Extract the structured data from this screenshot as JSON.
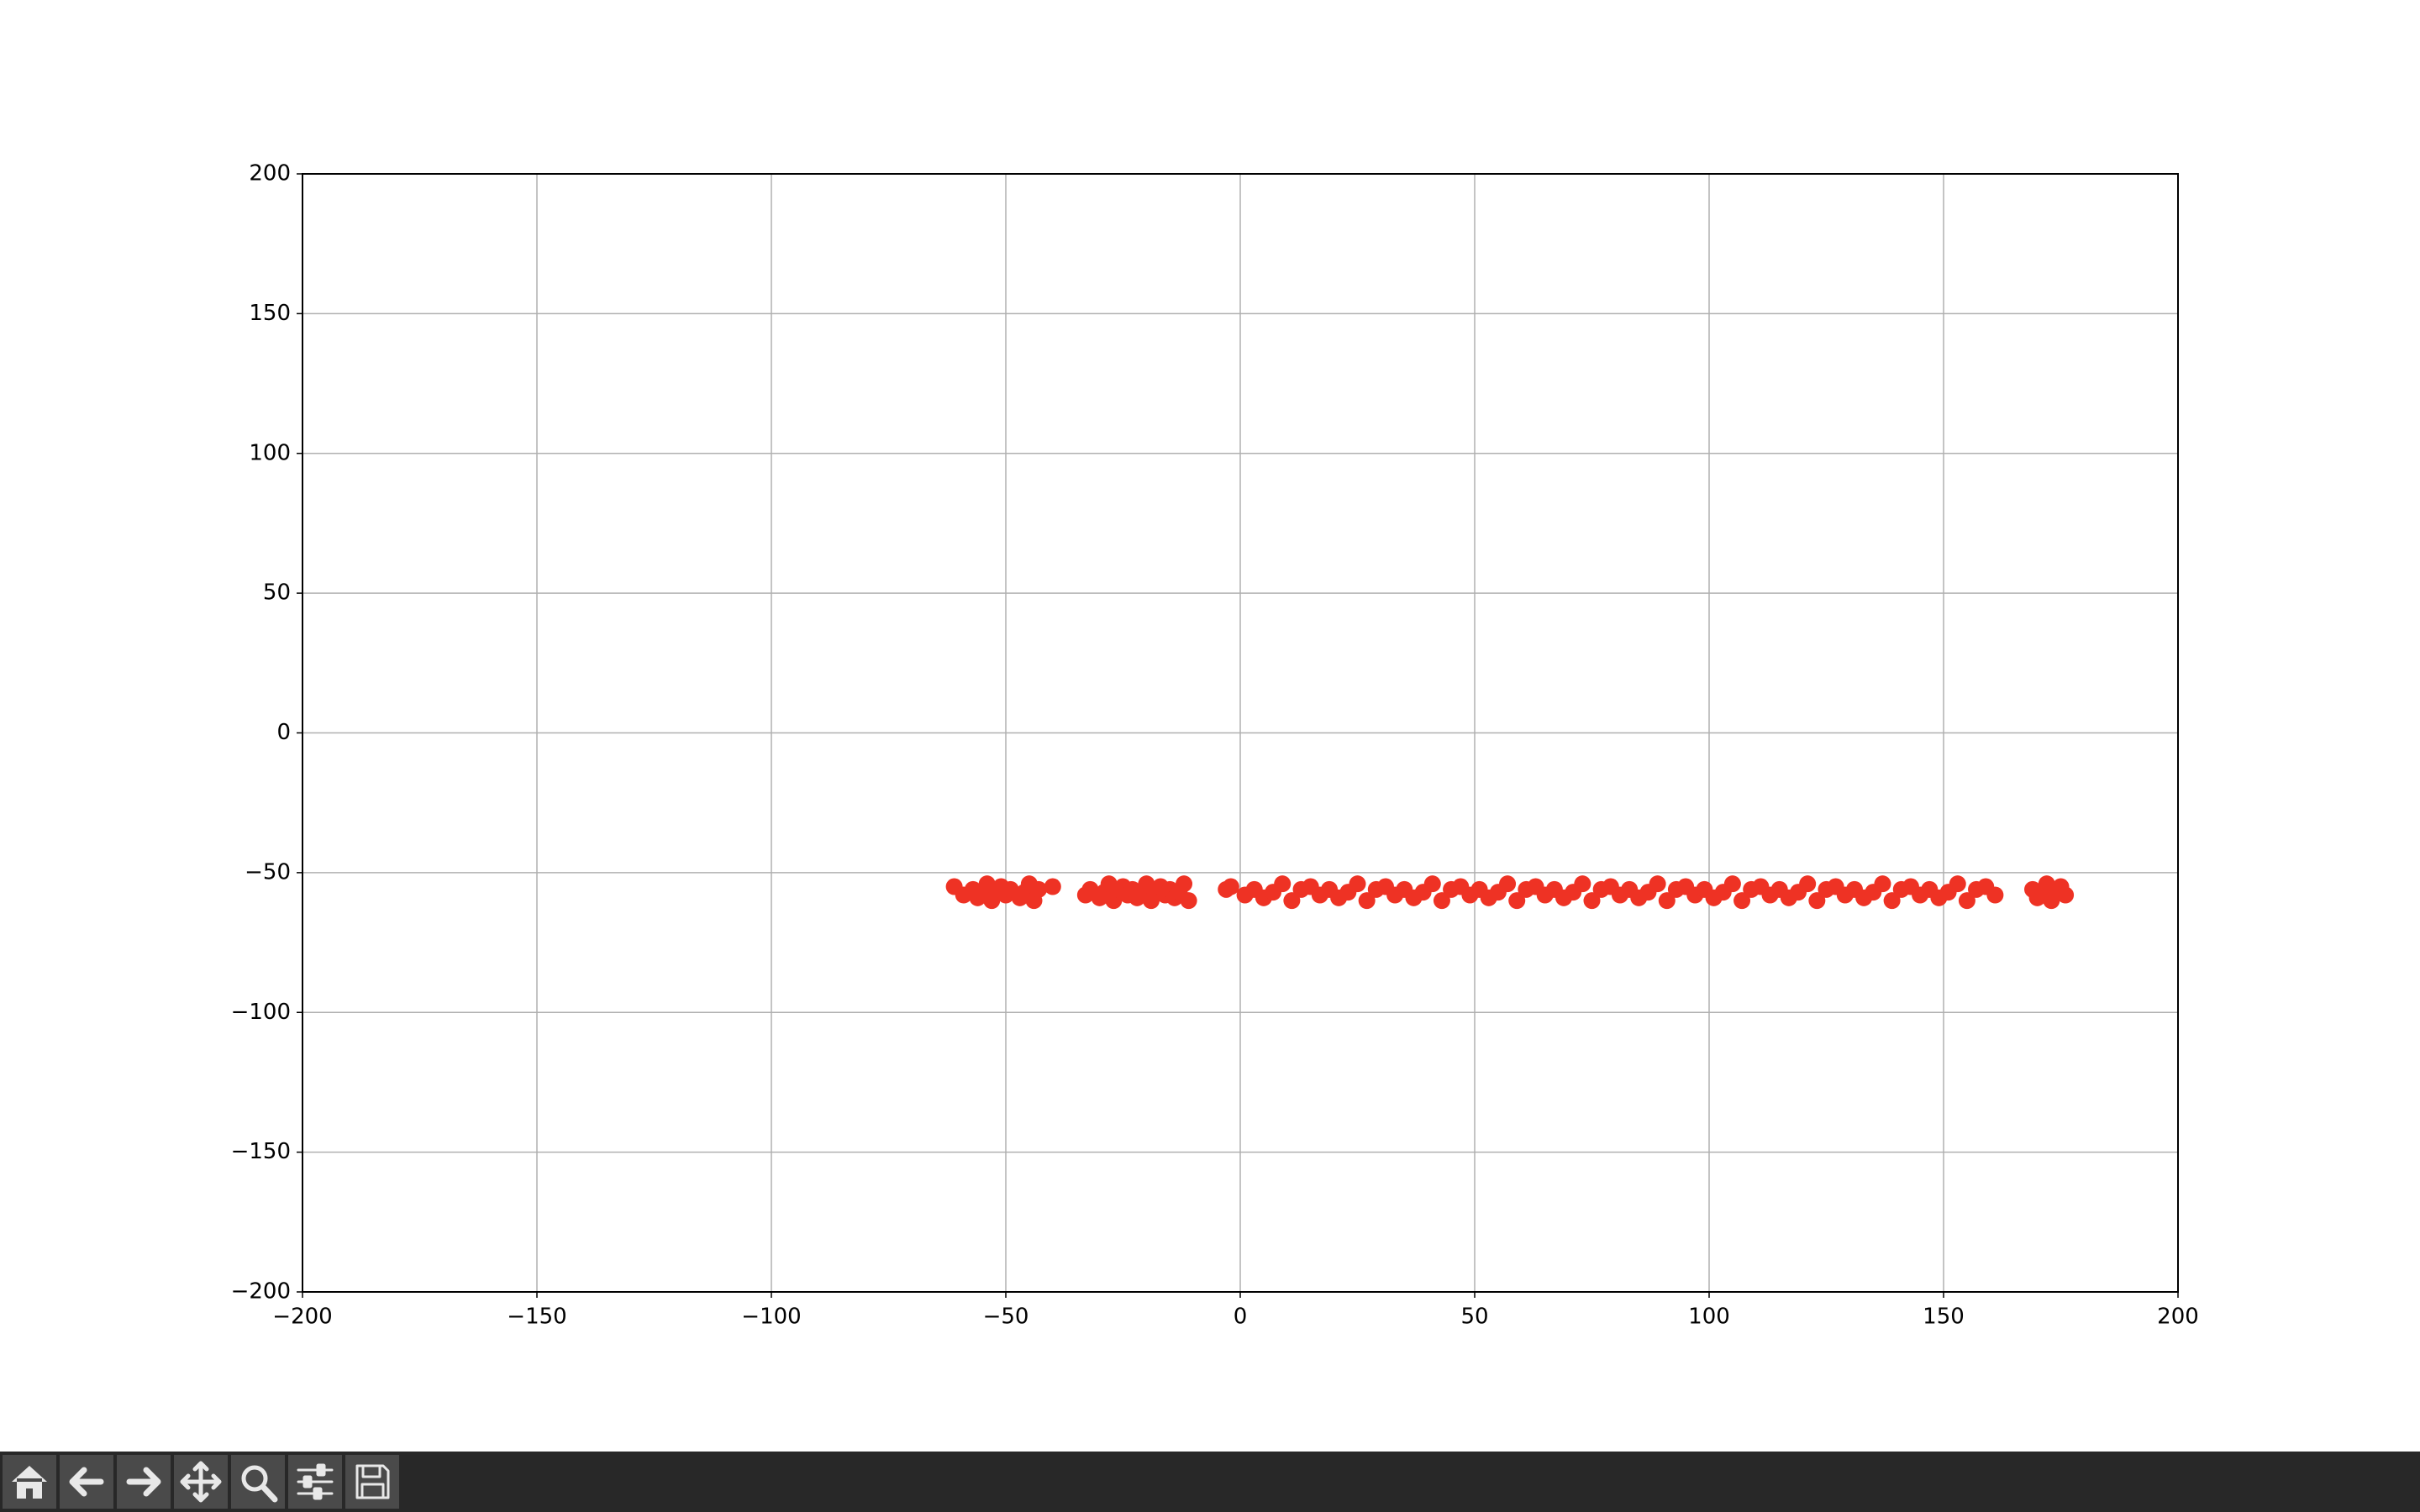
{
  "chart_data": {
    "type": "scatter",
    "color": "#ee3224",
    "grid": true,
    "xlim": [
      -200,
      200
    ],
    "ylim": [
      -200,
      200
    ],
    "xticks": [
      {
        "value": -200,
        "label": "−200"
      },
      {
        "value": -150,
        "label": "−150"
      },
      {
        "value": -100,
        "label": "−100"
      },
      {
        "value": -50,
        "label": "−50"
      },
      0,
      50,
      100,
      150,
      200
    ],
    "yticks": [
      {
        "value": -200,
        "label": "−200"
      },
      {
        "value": -150,
        "label": "−150"
      },
      {
        "value": -100,
        "label": "−100"
      },
      {
        "value": -50,
        "label": "−50"
      },
      0,
      50,
      100,
      150,
      200
    ],
    "x": [
      -61,
      -59,
      -57,
      -56,
      -55,
      -54,
      -53,
      -52,
      -51,
      -50,
      -49,
      -47,
      -46,
      -45,
      -44,
      -43,
      -40,
      -33,
      -32,
      -30,
      -29,
      -28,
      -27,
      -26,
      -25,
      -24,
      -23,
      -22,
      -21,
      -20,
      -19,
      -18,
      -17,
      -16,
      -15,
      -14,
      -13,
      -12,
      -11,
      -3,
      -2,
      1,
      3,
      5,
      7,
      9,
      11,
      13,
      15,
      17,
      19,
      21,
      23,
      25,
      27,
      29,
      31,
      33,
      35,
      37,
      39,
      41,
      43,
      45,
      47,
      49,
      51,
      53,
      55,
      57,
      59,
      61,
      63,
      65,
      67,
      69,
      71,
      73,
      75,
      77,
      79,
      81,
      83,
      85,
      87,
      89,
      91,
      93,
      95,
      97,
      99,
      101,
      103,
      105,
      107,
      109,
      111,
      113,
      115,
      117,
      119,
      121,
      123,
      125,
      127,
      129,
      131,
      133,
      135,
      137,
      139,
      141,
      143,
      145,
      147,
      149,
      151,
      153,
      155,
      157,
      159,
      161,
      169,
      170,
      171,
      172,
      173,
      174,
      175,
      176
    ],
    "values": [
      -55,
      -58,
      -56,
      -59,
      -57,
      -54,
      -60,
      -56,
      -55,
      -58,
      -56,
      -59,
      -57,
      -54,
      -60,
      -56,
      -55,
      -58,
      -56,
      -59,
      -57,
      -54,
      -60,
      -56,
      -55,
      -58,
      -56,
      -59,
      -57,
      -54,
      -60,
      -56,
      -55,
      -58,
      -56,
      -59,
      -57,
      -54,
      -60,
      -56,
      -55,
      -58,
      -56,
      -59,
      -57,
      -54,
      -60,
      -56,
      -55,
      -58,
      -56,
      -59,
      -57,
      -54,
      -60,
      -56,
      -55,
      -58,
      -56,
      -59,
      -57,
      -54,
      -60,
      -56,
      -55,
      -58,
      -56,
      -59,
      -57,
      -54,
      -60,
      -56,
      -55,
      -58,
      -56,
      -59,
      -57,
      -54,
      -60,
      -56,
      -55,
      -58,
      -56,
      -59,
      -57,
      -54,
      -60,
      -56,
      -55,
      -58,
      -56,
      -59,
      -57,
      -54,
      -60,
      -56,
      -55,
      -58,
      -56,
      -59,
      -57,
      -54,
      -60,
      -56,
      -55,
      -58,
      -56,
      -59,
      -57,
      -54,
      -60,
      -56,
      -55,
      -58,
      -56,
      -59,
      -57,
      -54,
      -60,
      -56,
      -55,
      -58,
      -56,
      -59,
      -57,
      -54,
      -60,
      -56,
      -55,
      -58
    ]
  }
}
